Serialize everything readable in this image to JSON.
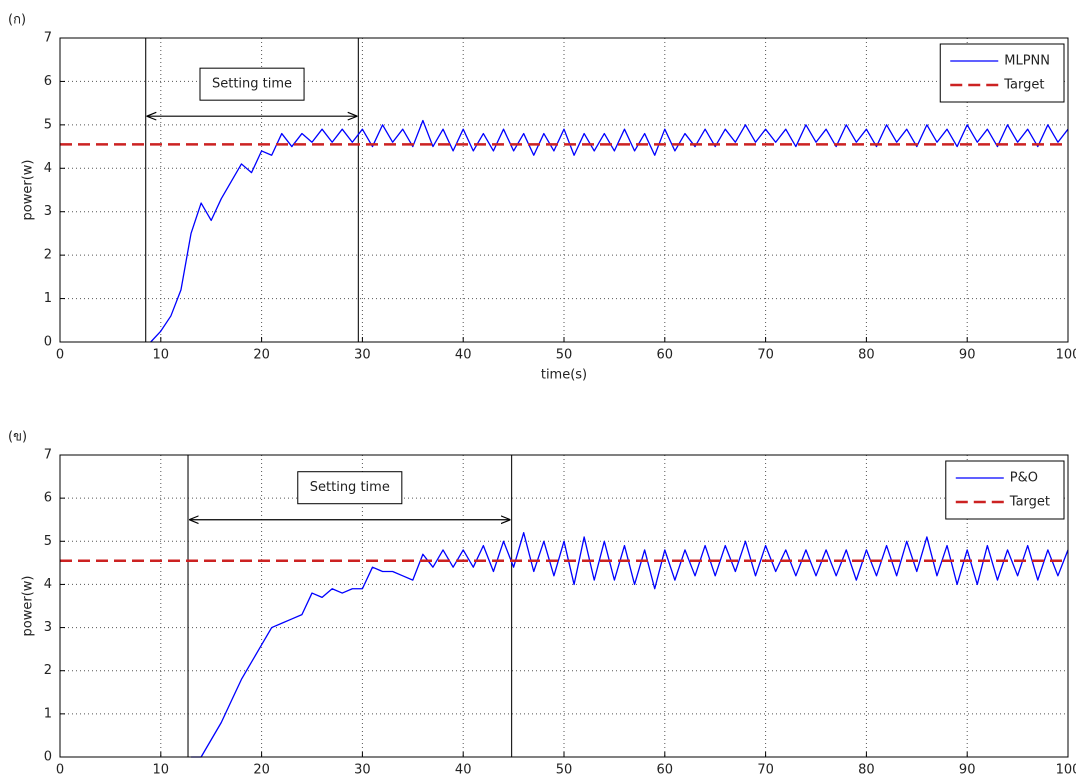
{
  "chart_data": [
    {
      "type": "line",
      "label": "(ก)",
      "xlabel": "time(s)",
      "ylabel": "power(w)",
      "xlim": [
        0,
        100
      ],
      "ylim": [
        0,
        7
      ],
      "xticks": [
        0,
        10,
        20,
        30,
        40,
        50,
        60,
        70,
        80,
        90,
        100
      ],
      "yticks": [
        0,
        1,
        2,
        3,
        4,
        5,
        6,
        7
      ],
      "grid": true,
      "legend": "upper right",
      "series": [
        {
          "name": "MLPNN",
          "color": "#0000ff",
          "style": "solid",
          "x": [
            9,
            10,
            11,
            12,
            13,
            14,
            15,
            16,
            17,
            18,
            19,
            20,
            21,
            22,
            23,
            24,
            25,
            26,
            27,
            28,
            29,
            30,
            31,
            32,
            33,
            34,
            35,
            36,
            37,
            38,
            39,
            40,
            41,
            42,
            43,
            44,
            45,
            46,
            47,
            48,
            49,
            50,
            51,
            52,
            53,
            54,
            55,
            56,
            57,
            58,
            59,
            60,
            61,
            62,
            63,
            64,
            65,
            66,
            67,
            68,
            69,
            70,
            71,
            72,
            73,
            74,
            75,
            76,
            77,
            78,
            79,
            80,
            81,
            82,
            83,
            84,
            85,
            86,
            87,
            88,
            89,
            90,
            91,
            92,
            93,
            94,
            95,
            96,
            97,
            98,
            99,
            100
          ],
          "values": [
            0,
            0.25,
            0.6,
            1.2,
            2.5,
            3.2,
            2.8,
            3.3,
            3.7,
            4.1,
            3.9,
            4.4,
            4.3,
            4.8,
            4.5,
            4.8,
            4.6,
            4.9,
            4.6,
            4.9,
            4.6,
            4.9,
            4.5,
            5.0,
            4.6,
            4.9,
            4.5,
            5.1,
            4.5,
            4.9,
            4.4,
            4.9,
            4.4,
            4.8,
            4.4,
            4.9,
            4.4,
            4.8,
            4.3,
            4.8,
            4.4,
            4.9,
            4.3,
            4.8,
            4.4,
            4.8,
            4.4,
            4.9,
            4.4,
            4.8,
            4.3,
            4.9,
            4.4,
            4.8,
            4.5,
            4.9,
            4.5,
            4.9,
            4.6,
            5.0,
            4.6,
            4.9,
            4.6,
            4.9,
            4.5,
            5.0,
            4.6,
            4.9,
            4.5,
            5.0,
            4.6,
            4.9,
            4.5,
            5.0,
            4.6,
            4.9,
            4.5,
            5.0,
            4.6,
            4.9,
            4.5,
            5.0,
            4.6,
            4.9,
            4.5,
            5.0,
            4.6,
            4.9,
            4.5,
            5.0,
            4.6,
            4.9
          ]
        },
        {
          "name": "Target",
          "color": "#cc2222",
          "style": "dashed",
          "x": [
            0,
            100
          ],
          "values": [
            4.55,
            4.55
          ]
        }
      ],
      "annotation": {
        "text": "Setting time",
        "x": [
          8.5,
          29.6
        ],
        "y": 5.2
      }
    },
    {
      "type": "line",
      "label": "(ข)",
      "ylabel": "power(w)",
      "xlim": [
        0,
        100
      ],
      "ylim": [
        0,
        7
      ],
      "xticks": [
        0,
        10,
        20,
        30,
        40,
        50,
        60,
        70,
        80,
        90,
        100
      ],
      "yticks": [
        0,
        1,
        2,
        3,
        4,
        5,
        6,
        7
      ],
      "grid": true,
      "legend": "upper right",
      "series": [
        {
          "name": "P&O",
          "color": "#0000ff",
          "style": "solid",
          "x": [
            13,
            14,
            15,
            16,
            17,
            18,
            19,
            20,
            21,
            22,
            23,
            24,
            25,
            26,
            27,
            28,
            29,
            30,
            31,
            32,
            33,
            34,
            35,
            36,
            37,
            38,
            39,
            40,
            41,
            42,
            43,
            44,
            45,
            46,
            47,
            48,
            49,
            50,
            51,
            52,
            53,
            54,
            55,
            56,
            57,
            58,
            59,
            60,
            61,
            62,
            63,
            64,
            65,
            66,
            67,
            68,
            69,
            70,
            71,
            72,
            73,
            74,
            75,
            76,
            77,
            78,
            79,
            80,
            81,
            82,
            83,
            84,
            85,
            86,
            87,
            88,
            89,
            90,
            91,
            92,
            93,
            94,
            95,
            96,
            97,
            98,
            99,
            100
          ],
          "values": [
            0,
            0,
            0.4,
            0.8,
            1.3,
            1.8,
            2.2,
            2.6,
            3.0,
            3.1,
            3.2,
            3.3,
            3.8,
            3.7,
            3.9,
            3.8,
            3.9,
            3.9,
            4.4,
            4.3,
            4.3,
            4.2,
            4.1,
            4.7,
            4.4,
            4.8,
            4.4,
            4.8,
            4.4,
            4.9,
            4.3,
            5.0,
            4.4,
            5.2,
            4.3,
            5.0,
            4.2,
            5.0,
            4.0,
            5.1,
            4.1,
            5.0,
            4.1,
            4.9,
            4.0,
            4.8,
            3.9,
            4.8,
            4.1,
            4.8,
            4.2,
            4.9,
            4.2,
            4.9,
            4.3,
            5.0,
            4.2,
            4.9,
            4.3,
            4.8,
            4.2,
            4.8,
            4.2,
            4.8,
            4.2,
            4.8,
            4.1,
            4.8,
            4.2,
            4.9,
            4.2,
            5.0,
            4.3,
            5.1,
            4.2,
            4.9,
            4.0,
            4.8,
            4.0,
            4.9,
            4.1,
            4.8,
            4.2,
            4.9,
            4.1,
            4.8,
            4.2,
            4.8
          ]
        },
        {
          "name": "Target",
          "color": "#cc2222",
          "style": "dashed",
          "x": [
            0,
            100
          ],
          "values": [
            4.55,
            4.55
          ]
        }
      ],
      "annotation": {
        "text": "Setting time",
        "x": [
          12.7,
          44.8
        ],
        "y": 5.5
      }
    }
  ]
}
